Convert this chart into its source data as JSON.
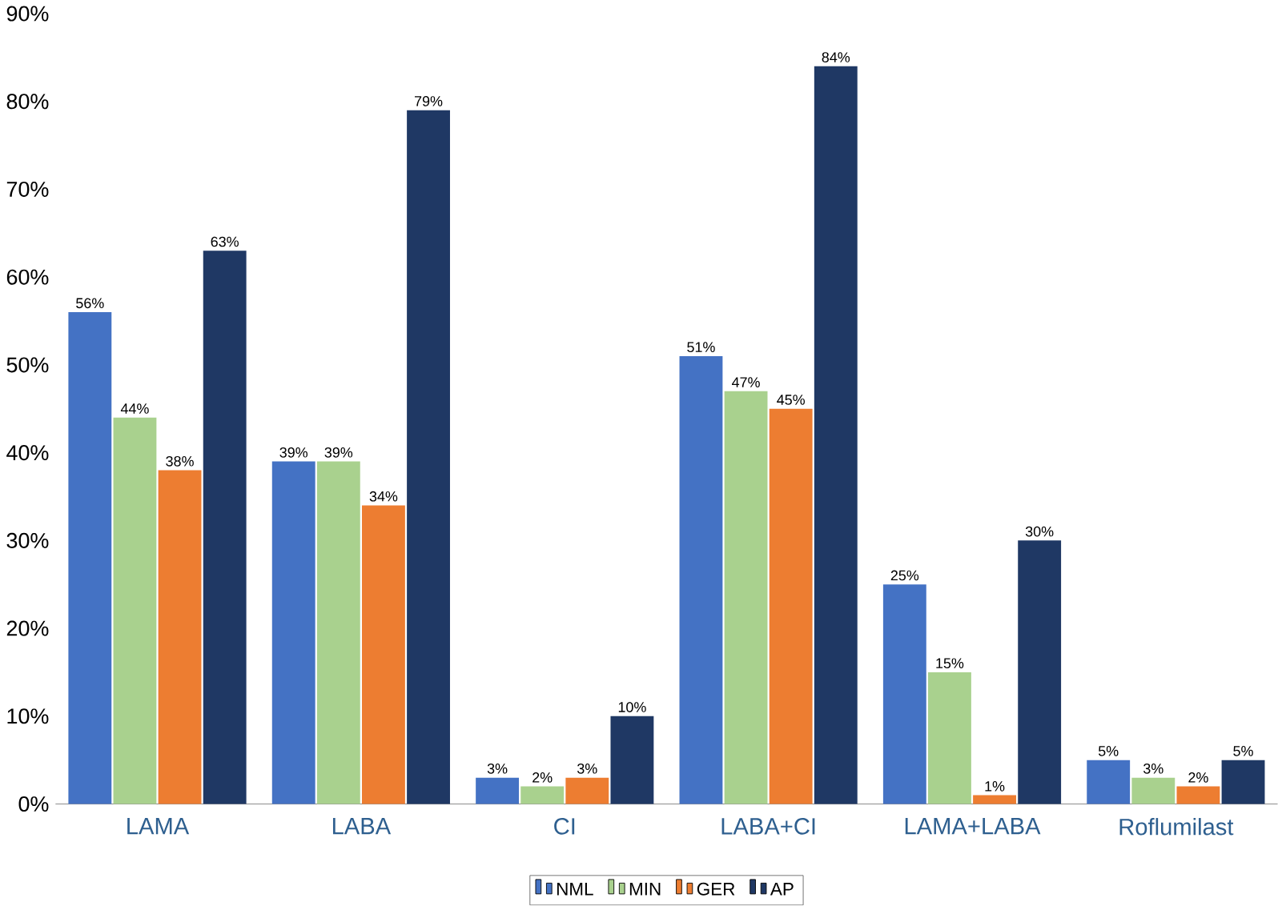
{
  "chart_data": {
    "type": "bar",
    "categories": [
      "LAMA",
      "LABA",
      "CI",
      "LABA+CI",
      "LAMA+LABA",
      "Roflumilast"
    ],
    "ylim": [
      0,
      90
    ],
    "yticks": [
      {
        "value": 0,
        "label": "0%"
      },
      {
        "value": 10,
        "label": "10%"
      },
      {
        "value": 20,
        "label": "20%"
      },
      {
        "value": 30,
        "label": "30%"
      },
      {
        "value": 40,
        "label": "40%"
      },
      {
        "value": 50,
        "label": "50%"
      },
      {
        "value": 60,
        "label": "60%"
      },
      {
        "value": 70,
        "label": "70%"
      },
      {
        "value": 80,
        "label": "80%"
      },
      {
        "value": 90,
        "label": "90%"
      }
    ],
    "grid": false,
    "legend": "bottom",
    "series": [
      {
        "name": "NML",
        "color": "#4472c4",
        "values": [
          56,
          39,
          3,
          51,
          25,
          5
        ],
        "value_labels": [
          "56%",
          "39%",
          "3%",
          "51%",
          "25%",
          "5%"
        ]
      },
      {
        "name": "MIN",
        "color": "#a9d18e",
        "values": [
          44,
          39,
          2,
          47,
          15,
          3
        ],
        "value_labels": [
          "44%",
          "39%",
          "2%",
          "47%",
          "15%",
          "3%"
        ]
      },
      {
        "name": "GER",
        "color": "#ed7d31",
        "values": [
          38,
          34,
          3,
          45,
          1,
          2
        ],
        "value_labels": [
          "38%",
          "34%",
          "3%",
          "45%",
          "1%",
          "2%"
        ]
      },
      {
        "name": "AP",
        "color": "#1f3864",
        "values": [
          63,
          79,
          10,
          84,
          30,
          5
        ],
        "value_labels": [
          "63%",
          "79%",
          "10%",
          "84%",
          "30%",
          "5%"
        ]
      }
    ]
  }
}
